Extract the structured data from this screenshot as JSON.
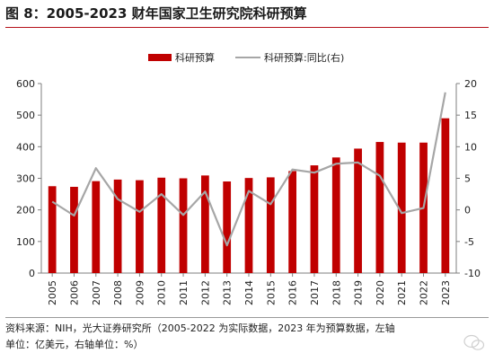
{
  "title": "图 8：2005-2023 财年国家卫生研究院科研预算",
  "chart_data": {
    "type": "bar",
    "categories": [
      "2005",
      "2006",
      "2007",
      "2008",
      "2009",
      "2010",
      "2011",
      "2012",
      "2013",
      "2014",
      "2015",
      "2016",
      "2017",
      "2018",
      "2019",
      "2020",
      "2021",
      "2022",
      "2023"
    ],
    "series": [
      {
        "name": "科研预算",
        "type": "bar",
        "axis": "left",
        "color": "#c00000",
        "values": [
          275,
          273,
          291,
          296,
          294,
          302,
          300,
          309,
          290,
          301,
          303,
          323,
          341,
          366,
          394,
          415,
          413,
          413,
          490
        ]
      },
      {
        "name": "科研预算:同比(右)",
        "type": "line",
        "axis": "right",
        "color": "#a6a6a6",
        "values": [
          1.3,
          -0.9,
          6.6,
          1.7,
          -0.3,
          2.5,
          -0.8,
          2.9,
          -5.6,
          3.0,
          0.9,
          6.4,
          5.9,
          7.3,
          7.5,
          5.4,
          -0.5,
          0.3,
          18.6
        ]
      }
    ],
    "y_left": {
      "min": 0,
      "max": 600,
      "ticks": [
        0,
        100,
        200,
        300,
        400,
        500,
        600
      ]
    },
    "y_right": {
      "min": -10,
      "max": 20,
      "ticks": [
        -10,
        -5,
        0,
        5,
        10,
        15,
        20
      ]
    },
    "legend": {
      "position": "top"
    },
    "grid": false
  },
  "source": {
    "line1": "资料来源：NIH，光大证券研究所（2005-2022 为实际数据，2023 年为预算数据，左轴",
    "line2": "单位：亿美元，右轴单位：%）"
  }
}
